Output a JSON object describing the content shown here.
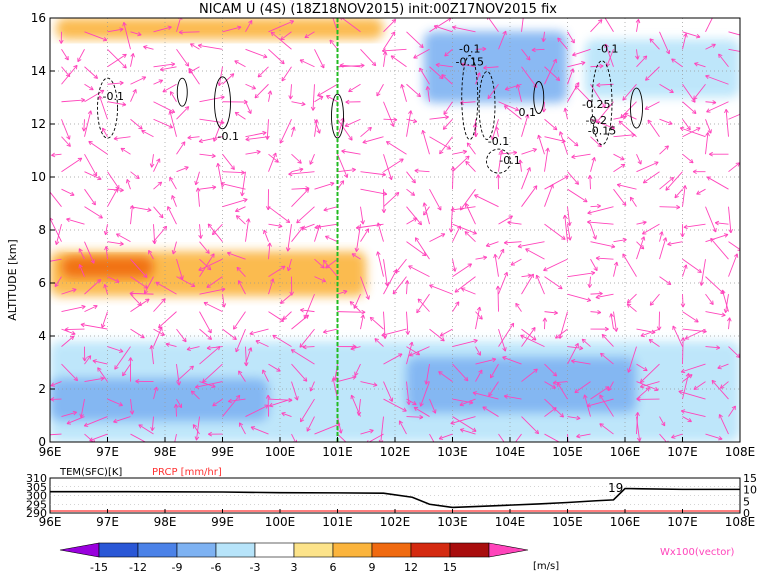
{
  "chart_data": [
    {
      "type": "heatmap",
      "title": "NICAM U (4S) (18Z18NOV2015) init:00Z17NOV2015 fix",
      "ylabel": "ALTITUDE [km]",
      "xlim": [
        96,
        108
      ],
      "ylim": [
        0,
        16
      ],
      "x_ticks": [
        "96E",
        "97E",
        "98E",
        "99E",
        "100E",
        "101E",
        "102E",
        "103E",
        "104E",
        "105E",
        "106E",
        "107E",
        "108E"
      ],
      "y_ticks": [
        "0",
        "2",
        "4",
        "6",
        "8",
        "10",
        "12",
        "14",
        "16"
      ],
      "grid": true,
      "marker_line_lon": 101,
      "marker_color": "#22bb22",
      "shaded_regions": [
        {
          "x0": 96.1,
          "x1": 101.8,
          "y0": 15.2,
          "y1": 16,
          "value": 6
        },
        {
          "x0": 96,
          "x1": 101.5,
          "y0": 5.5,
          "y1": 7.2,
          "value": 6
        },
        {
          "x0": 96.2,
          "x1": 97.8,
          "y0": 6.2,
          "y1": 7.0,
          "value": 9
        },
        {
          "x0": 96,
          "x1": 108,
          "y0": 0,
          "y1": 3.8,
          "value": -6
        },
        {
          "x0": 96,
          "x1": 99.8,
          "y0": 0.8,
          "y1": 2.4,
          "value": -9
        },
        {
          "x0": 102.2,
          "x1": 106.2,
          "y0": 1.1,
          "y1": 3.2,
          "value": -9
        },
        {
          "x0": 102.5,
          "x1": 105.0,
          "y0": 12.8,
          "y1": 15.5,
          "value": -9
        },
        {
          "x0": 105.3,
          "x1": 108,
          "y0": 13.0,
          "y1": 15.2,
          "value": -6
        }
      ],
      "contour_labels": [
        "-0.1",
        "-0.1",
        "-0.1",
        "-0.15",
        "-0.1",
        "0.1",
        "-0.1",
        "-0.25",
        "-0.2",
        "-0.15",
        "-0.1"
      ],
      "colorbar": {
        "levels": [
          "-15",
          "-12",
          "-9",
          "-6",
          "-3",
          "3",
          "6",
          "9",
          "12",
          "15"
        ],
        "colors": [
          "#9900dd",
          "#2a57d6",
          "#4b82e8",
          "#7eb2f2",
          "#b7e4fa",
          "#ffffff",
          "#fce38a",
          "#fbb43c",
          "#f06a10",
          "#d42a10",
          "#a80d0d",
          "#ff44bb"
        ],
        "units": "[m/s]",
        "vector_note": "Wx100(vector)"
      }
    },
    {
      "type": "line",
      "xlim": [
        96,
        108
      ],
      "ylabel_left": "TEM(SFC)[K]",
      "ylabel_right": "PRCP [mm/hr]",
      "left_ticks": [
        "290",
        "295",
        "300",
        "305",
        "310"
      ],
      "right_ticks": [
        "0",
        "5",
        "10",
        "15"
      ],
      "x_ticks": [
        "96E",
        "97E",
        "98E",
        "99E",
        "100E",
        "101E",
        "102E",
        "103E",
        "104E",
        "105E",
        "106E",
        "107E",
        "108E"
      ],
      "series": [
        {
          "values_lon": [
            96,
            97,
            98,
            99,
            100,
            101,
            101.8,
            102.3,
            102.6,
            103,
            103.5,
            104,
            104.5,
            105,
            105.5,
            105.8,
            106,
            106.3,
            107,
            108
          ],
          "values": [
            302.2,
            302.2,
            302.1,
            302,
            301.6,
            301.5,
            301.3,
            299,
            295,
            293.2,
            293.8,
            294.5,
            295.2,
            296,
            297,
            297.5,
            304,
            303.8,
            303.5,
            303.5
          ]
        },
        {
          "values_lon": [
            96,
            106,
            108
          ],
          "values": [
            0,
            0,
            0
          ]
        }
      ],
      "annotation": "19",
      "prcp_color": "#ff3333"
    }
  ]
}
